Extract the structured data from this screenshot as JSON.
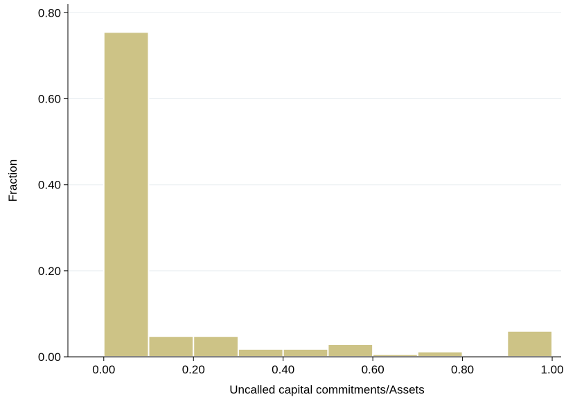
{
  "chart_data": {
    "type": "bar",
    "subtype": "histogram",
    "bins": [
      {
        "x0": 0.0,
        "x1": 0.1,
        "value": 0.755
      },
      {
        "x0": 0.1,
        "x1": 0.2,
        "value": 0.048
      },
      {
        "x0": 0.2,
        "x1": 0.3,
        "value": 0.048
      },
      {
        "x0": 0.3,
        "x1": 0.4,
        "value": 0.018
      },
      {
        "x0": 0.4,
        "x1": 0.5,
        "value": 0.018
      },
      {
        "x0": 0.5,
        "x1": 0.6,
        "value": 0.029
      },
      {
        "x0": 0.6,
        "x1": 0.7,
        "value": 0.006
      },
      {
        "x0": 0.7,
        "x1": 0.8,
        "value": 0.012
      },
      {
        "x0": 0.8,
        "x1": 0.9,
        "value": 0.0
      },
      {
        "x0": 0.9,
        "x1": 1.0,
        "value": 0.06
      }
    ],
    "xlabel": "Uncalled capital commitments/Assets",
    "ylabel": "Fraction",
    "xlim": [
      -0.08,
      1.02
    ],
    "ylim": [
      0,
      0.82
    ],
    "xticks": [
      0,
      0.2,
      0.4,
      0.6,
      0.8,
      1.0
    ],
    "xtick_labels": [
      "0.00",
      "0.20",
      "0.40",
      "0.60",
      "0.80",
      "1.00"
    ],
    "yticks": [
      0,
      0.2,
      0.4,
      0.6,
      0.8
    ],
    "ytick_labels": [
      "0.00",
      "0.20",
      "0.40",
      "0.60",
      "0.80"
    ],
    "grid": true,
    "colors": {
      "bar_fill": "#cdc386",
      "bar_stroke": "#ffffff",
      "grid": "#e8edf1",
      "axis": "#000000"
    }
  }
}
